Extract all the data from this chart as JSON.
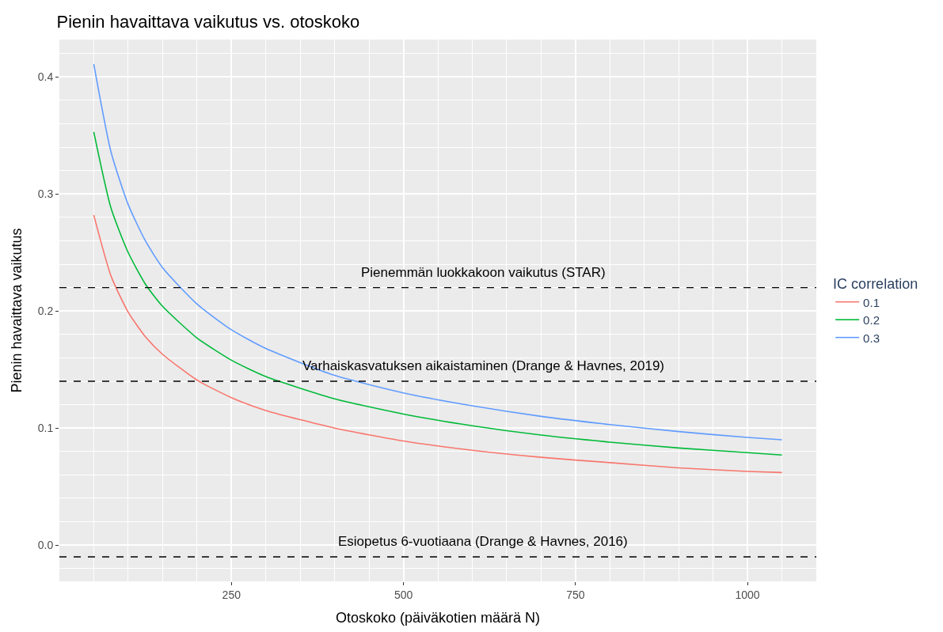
{
  "chart_data": {
    "type": "line",
    "title": "Pienin havaittava vaikutus vs. otoskoko",
    "xlabel": "Otoskoko (päiväkotien määrä N)",
    "ylabel": "Pienin havaittava vaikutus",
    "legend_title": "IC correlation",
    "x": [
      50,
      75,
      100,
      125,
      150,
      200,
      250,
      300,
      400,
      500,
      600,
      700,
      800,
      900,
      1000,
      1050
    ],
    "series": [
      {
        "name": "0.1",
        "color": "#f8766d",
        "values": [
          0.282,
          0.23,
          0.199,
          0.178,
          0.163,
          0.141,
          0.126,
          0.115,
          0.1,
          0.089,
          0.081,
          0.075,
          0.0705,
          0.066,
          0.063,
          0.062
        ]
      },
      {
        "name": "0.2",
        "color": "#00ba38",
        "values": [
          0.353,
          0.288,
          0.25,
          0.223,
          0.204,
          0.177,
          0.158,
          0.144,
          0.125,
          0.112,
          0.102,
          0.094,
          0.088,
          0.083,
          0.079,
          0.077
        ]
      },
      {
        "name": "0.3",
        "color": "#619cff",
        "values": [
          0.411,
          0.336,
          0.291,
          0.26,
          0.237,
          0.206,
          0.184,
          0.168,
          0.145,
          0.13,
          0.119,
          0.11,
          0.103,
          0.097,
          0.092,
          0.09
        ]
      }
    ],
    "ref_lines": [
      {
        "axis": "y",
        "value": 0.22,
        "label": "Pienemmän luokkakoon vaikutus (STAR)",
        "color": "#000000",
        "line_style": "dashed"
      },
      {
        "axis": "y",
        "value": 0.14,
        "label": "Varhaiskasvatuksen aikaistaminen (Drange & Havnes, 2019)",
        "color": "#000000",
        "line_style": "dashed"
      },
      {
        "axis": "y",
        "value": -0.01,
        "label": "Esiopetus 6-vuotiaana (Drange & Havnes, 2016)",
        "color": "#000000",
        "line_style": "dashed"
      }
    ],
    "xlim": [
      0,
      1100
    ],
    "xticks": [
      250,
      500,
      750,
      1000
    ],
    "ylim": [
      -0.031,
      0.432
    ],
    "yticks": [
      {
        "value": 0,
        "label": "0.0"
      },
      0.1,
      0.2,
      0.3,
      0.4
    ],
    "grid": true,
    "legend": "right",
    "marker": "none",
    "line_style": "solid"
  }
}
